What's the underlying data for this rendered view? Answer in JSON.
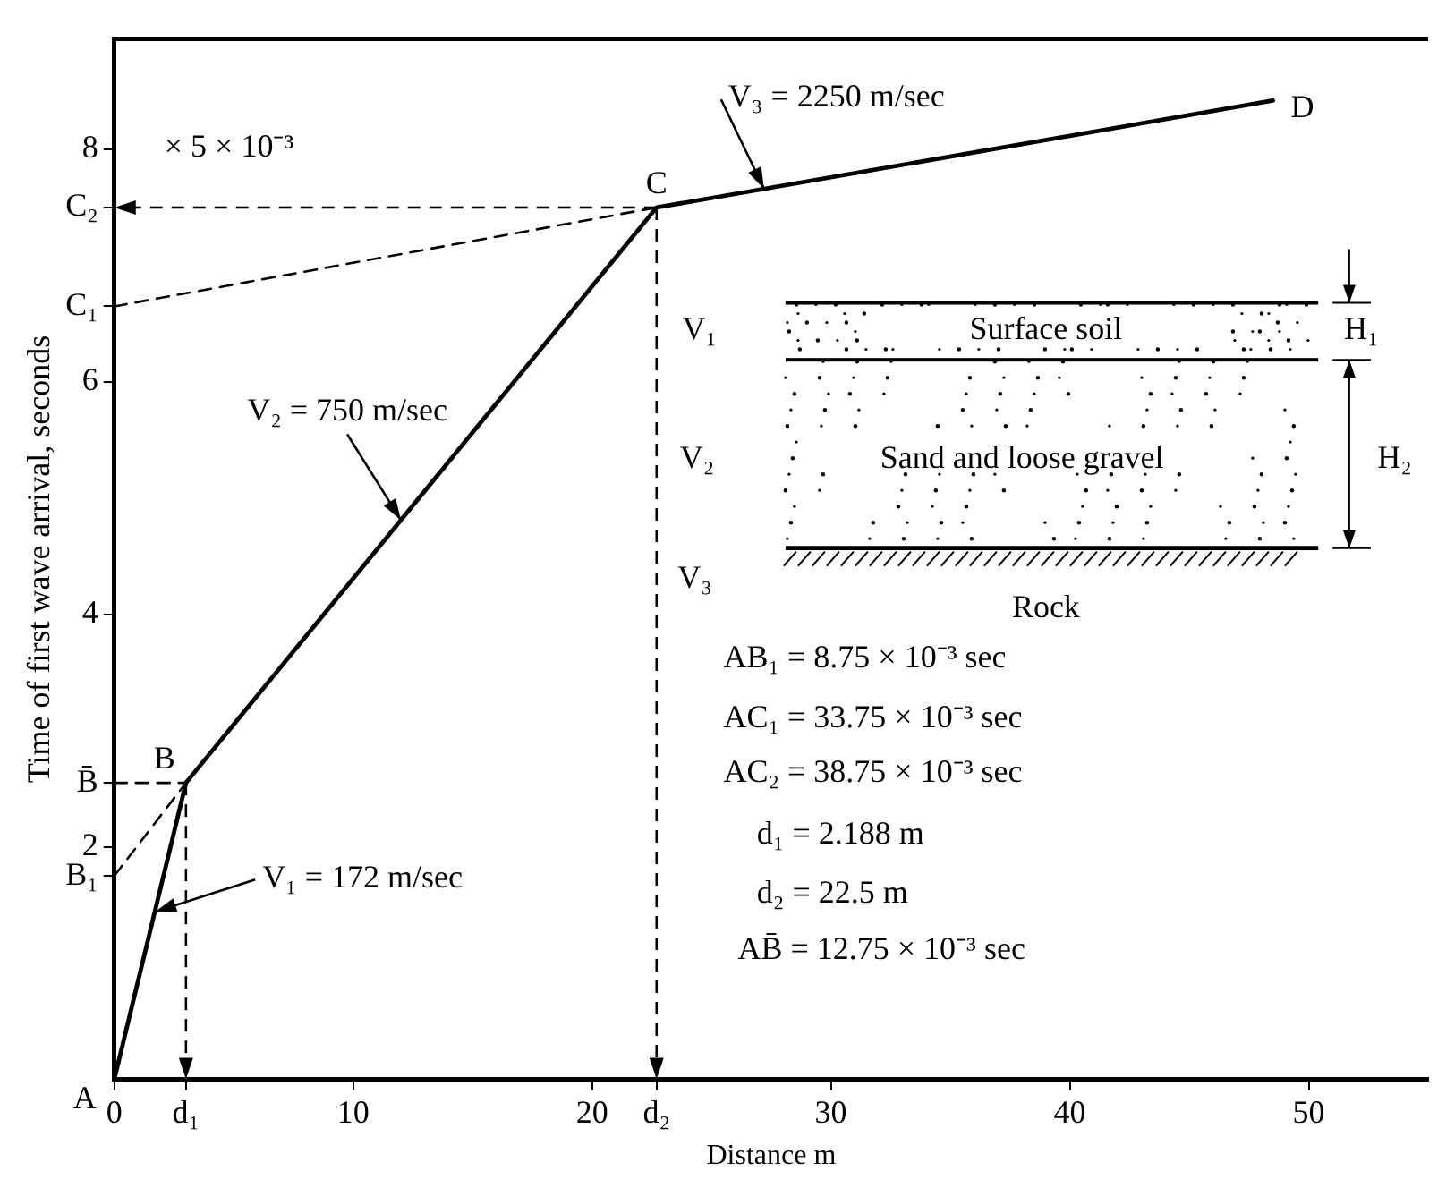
{
  "chart_data": {
    "type": "line",
    "xlabel": "Distance m",
    "ylabel": "Time of first wave arrival, seconds",
    "marker": "none",
    "xlim": [
      0,
      55
    ],
    "xticks": [
      0,
      {
        "value": 3,
        "label": "d₁"
      },
      10,
      20,
      {
        "value": 22.7,
        "label": "d₂"
      },
      30,
      40,
      50
    ],
    "ylim": [
      0,
      8.95
    ],
    "yticks": [
      {
        "value": 1.75,
        "label": "B₁"
      },
      2,
      {
        "value": 2.55,
        "label": "B̄"
      },
      4,
      6,
      {
        "value": 6.65,
        "label": "C₁"
      },
      {
        "value": 7.5,
        "label": "C₂"
      },
      8
    ],
    "series": [
      {
        "x": [
          0,
          3,
          22.7,
          48.5
        ],
        "values": [
          0,
          2.55,
          7.5,
          8.42
        ],
        "color": "#000000",
        "line_style": "solid"
      },
      {
        "x": [
          0,
          3
        ],
        "values": [
          1.75,
          2.55
        ],
        "color": "#000000",
        "line_style": "dashed"
      },
      {
        "x": [
          0,
          3
        ],
        "values": [
          2.55,
          2.55
        ],
        "color": "#000000",
        "line_style": "dashed"
      },
      {
        "x": [
          0,
          22.7
        ],
        "values": [
          6.65,
          7.5
        ],
        "color": "#000000",
        "line_style": "dashed"
      }
    ],
    "annotations": [
      {
        "text": "A",
        "x": 0,
        "y": 0
      },
      {
        "text": "B",
        "x": 3,
        "y": 2.55
      },
      {
        "text": "C",
        "x": 22.7,
        "y": 7.5
      },
      {
        "text": "D",
        "x": 48.5,
        "y": 8.42
      },
      {
        "text": "V₁ = 172 m/sec",
        "x": 1.7,
        "y": 1.44
      },
      {
        "text": "V₂ = 750 m/sec",
        "x": 12,
        "y": 4.81
      },
      {
        "text": "V₃ = 2250 m/sec",
        "x": 27.2,
        "y": 7.66
      },
      "× 5 × 10⁻³",
      "V₁",
      "Surface soil",
      "H₁",
      "V₂",
      "Sand and loose gravel",
      "H₂",
      "V₃",
      "Rock",
      "AB₁ = 8.75 × 10⁻³ sec",
      "AC₁ = 33.75 × 10⁻³ sec",
      "AC₂ = 38.75 × 10⁻³ sec",
      "d₁ = 2.188 m",
      "d₂ = 22.5 m",
      "AB̄ = 12.75 × 10⁻³ sec"
    ]
  }
}
